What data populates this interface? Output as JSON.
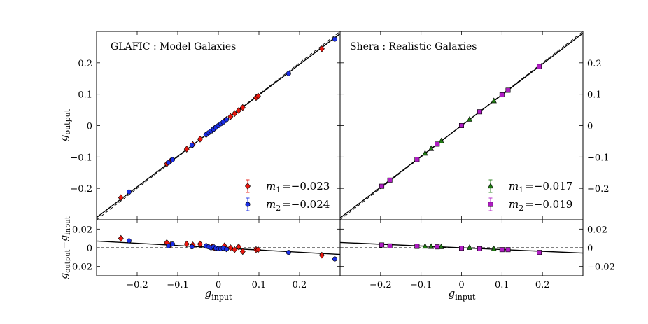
{
  "chart_data": [
    {
      "type": "scatter",
      "panel": "top-left",
      "title": "GLAFIC : Model Galaxies",
      "ylabel": "g_output",
      "xlim": [
        -0.3,
        0.3
      ],
      "ylim": [
        -0.3,
        0.3
      ],
      "yticks": [
        -0.2,
        -0.1,
        0,
        0.1,
        0.2
      ],
      "ytick_labels": [
        "−0.2",
        "−0.1",
        "0",
        "0.1",
        "0.2"
      ],
      "legend_position": "lower-right",
      "legend": [
        {
          "label_main": "m",
          "label_sub": "1",
          "label_value": "=−0.023",
          "marker": "diamond",
          "color": "#e8170e"
        },
        {
          "label_main": "m",
          "label_sub": "2",
          "label_value": "=−0.024",
          "marker": "circle",
          "color": "#1a2ee6"
        }
      ],
      "series": [
        {
          "marker": "diamond",
          "color": "#e8170e",
          "x": [
            -0.24,
            -0.127,
            -0.118,
            -0.078,
            -0.063,
            -0.045,
            -0.03,
            -0.015,
            -0.01,
            0.015,
            0.02,
            0.03,
            0.04,
            0.05,
            0.06,
            0.093,
            0.098,
            0.255
          ],
          "y": [
            -0.2294,
            -0.1219,
            -0.1133,
            -0.0749,
            -0.0605,
            -0.0432,
            -0.0288,
            -0.0144,
            -0.0096,
            0.0144,
            0.0192,
            0.0288,
            0.0384,
            0.048,
            0.0576,
            0.0893,
            0.0941,
            0.2447
          ]
        },
        {
          "marker": "circle",
          "color": "#1a2ee6",
          "x": [
            -0.22,
            -0.123,
            -0.113,
            -0.065,
            -0.03,
            -0.024,
            -0.018,
            -0.012,
            -0.006,
            0.0,
            0.006,
            0.012,
            0.02,
            0.173,
            0.287
          ],
          "y": [
            -0.2112,
            -0.1181,
            -0.1085,
            -0.0624,
            -0.0288,
            -0.023,
            -0.0173,
            -0.0115,
            -0.0058,
            0.0,
            0.0058,
            0.0115,
            0.0192,
            0.166,
            0.2755
          ]
        }
      ],
      "fit_line": {
        "slope": 0.976,
        "intercept": 0
      },
      "identity_line": {
        "slope": 1,
        "intercept": 0
      }
    },
    {
      "type": "scatter",
      "panel": "top-right",
      "title": "Shera : Realistic Galaxies",
      "xlim": [
        -0.3,
        0.3
      ],
      "ylim": [
        -0.3,
        0.3
      ],
      "yticks": [
        -0.2,
        -0.1,
        0,
        0.1,
        0.2
      ],
      "ytick_labels": [
        "−0.2",
        "−0.1",
        "0",
        "0.1",
        "0.2"
      ],
      "legend_position": "lower-right",
      "legend": [
        {
          "label_main": "m",
          "label_sub": "1",
          "label_value": "=−0.017",
          "marker": "triangle",
          "color": "#1f7a12"
        },
        {
          "label_main": "m",
          "label_sub": "2",
          "label_value": "=−0.019",
          "marker": "square",
          "color": "#b01cc4"
        }
      ],
      "series": [
        {
          "marker": "triangle",
          "color": "#1f7a12",
          "x": [
            -0.09,
            -0.075,
            -0.05,
            0.02,
            0.08
          ],
          "y": [
            -0.0885,
            -0.0737,
            -0.0492,
            0.0197,
            0.0786
          ]
        },
        {
          "marker": "square",
          "color": "#b01cc4",
          "x": [
            -0.197,
            -0.177,
            -0.11,
            -0.06,
            0.0,
            0.045,
            0.1,
            0.115,
            0.192
          ],
          "y": [
            -0.1933,
            -0.1736,
            -0.1079,
            -0.0589,
            0.0,
            0.0441,
            0.0981,
            0.1128,
            0.1884
          ]
        }
      ],
      "fit_line": {
        "slope": 0.981,
        "intercept": 0
      },
      "identity_line": {
        "slope": 1,
        "intercept": 0
      }
    },
    {
      "type": "scatter",
      "panel": "bottom-left",
      "xlabel": "g_input",
      "ylabel": "g_output − g_input",
      "xlim": [
        -0.3,
        0.3
      ],
      "ylim": [
        -0.03,
        0.03
      ],
      "xticks": [
        -0.2,
        -0.1,
        0,
        0.1,
        0.2
      ],
      "xtick_labels": [
        "−0.2",
        "−0.1",
        "0",
        "0.1",
        "0.2"
      ],
      "yticks": [
        -0.02,
        0,
        0.02
      ],
      "ytick_labels": [
        "−0.02",
        "0",
        "0.02"
      ],
      "series": [
        {
          "marker": "diamond",
          "color": "#e8170e",
          "x": [
            -0.24,
            -0.127,
            -0.118,
            -0.078,
            -0.063,
            -0.045,
            -0.03,
            -0.015,
            -0.01,
            0.015,
            0.02,
            0.03,
            0.04,
            0.05,
            0.06,
            0.093,
            0.098,
            0.255
          ],
          "y": [
            0.01,
            0.0055,
            0.003,
            0.004,
            0.003,
            0.004,
            0.002,
            0.001,
            0.0,
            0.002,
            -0.001,
            0.0,
            -0.002,
            0.001,
            -0.004,
            -0.002,
            -0.002,
            -0.008
          ]
        },
        {
          "marker": "circle",
          "color": "#1a2ee6",
          "x": [
            -0.22,
            -0.123,
            -0.113,
            -0.065,
            -0.03,
            -0.024,
            -0.018,
            -0.012,
            -0.006,
            0.0,
            0.006,
            0.012,
            0.02,
            0.173,
            0.287
          ],
          "y": [
            0.0075,
            0.002,
            0.004,
            0.001,
            0.002,
            0.001,
            0.0,
            0.001,
            -0.0005,
            -0.001,
            -0.001,
            -0.0005,
            -0.0015,
            -0.005,
            -0.012
          ]
        }
      ],
      "fit_line": {
        "slope": -0.024,
        "intercept": 0
      },
      "zero_line": {
        "y": 0,
        "style": "dashed"
      }
    },
    {
      "type": "scatter",
      "panel": "bottom-right",
      "xlabel": "g_input",
      "xlim": [
        -0.3,
        0.3
      ],
      "ylim": [
        -0.03,
        0.03
      ],
      "xticks": [
        -0.2,
        -0.1,
        0,
        0.1,
        0.2
      ],
      "xtick_labels": [
        "−0.2",
        "−0.1",
        "0",
        "0.1",
        "0.2"
      ],
      "yticks": [
        -0.02,
        0,
        0.02
      ],
      "ytick_labels": [
        "−0.02",
        "0",
        "0.02"
      ],
      "series": [
        {
          "marker": "triangle",
          "color": "#1f7a12",
          "x": [
            -0.09,
            -0.075,
            -0.05,
            0.02,
            0.08
          ],
          "y": [
            0.0015,
            0.0012,
            0.001,
            0.0002,
            -0.0012
          ]
        },
        {
          "marker": "square",
          "color": "#b01cc4",
          "x": [
            -0.197,
            -0.177,
            -0.11,
            -0.06,
            0.0,
            0.045,
            0.1,
            0.115,
            0.192
          ],
          "y": [
            0.003,
            0.002,
            0.0015,
            0.001,
            -0.0005,
            -0.001,
            -0.002,
            -0.002,
            -0.005
          ]
        }
      ],
      "fit_line": {
        "slope": -0.019,
        "intercept": 0
      },
      "zero_line": {
        "y": 0,
        "style": "dashed"
      }
    }
  ]
}
